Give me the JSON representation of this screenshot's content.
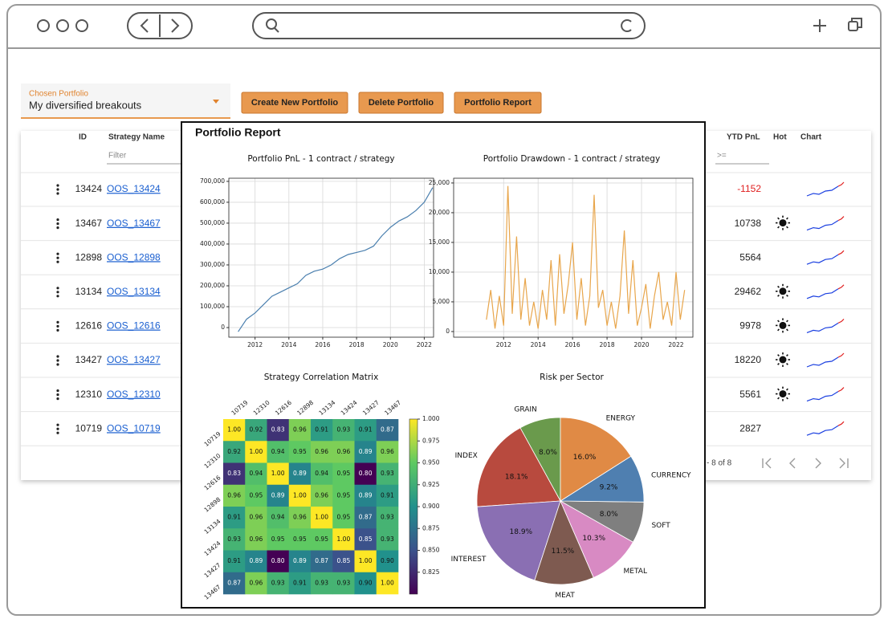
{
  "selector": {
    "label": "Chosen Portfolio",
    "value": "My diversified breakouts"
  },
  "buttons": [
    "Create New Portfolio",
    "Delete Portfolio",
    "Portfolio Report"
  ],
  "table": {
    "columns": [
      "ID",
      "Strategy Name",
      "YTD PnL",
      "Hot",
      "Chart"
    ],
    "filter_placeholder": "Filter",
    "filter_operator": ">=",
    "rows": [
      {
        "id": 13424,
        "name": "OOS_13424",
        "ytd_pnl": -1152,
        "hot": false
      },
      {
        "id": 13467,
        "name": "OOS_13467",
        "ytd_pnl": 10738,
        "hot": true
      },
      {
        "id": 12898,
        "name": "OOS_12898",
        "ytd_pnl": 5564,
        "hot": false
      },
      {
        "id": 13134,
        "name": "OOS_13134",
        "ytd_pnl": 29462,
        "hot": true
      },
      {
        "id": 12616,
        "name": "OOS_12616",
        "ytd_pnl": 9978,
        "hot": true
      },
      {
        "id": 13427,
        "name": "OOS_13427",
        "ytd_pnl": 18220,
        "hot": true
      },
      {
        "id": 12310,
        "name": "OOS_12310",
        "ytd_pnl": 5561,
        "hot": true
      },
      {
        "id": 10719,
        "name": "OOS_10719",
        "ytd_pnl": 2827,
        "hot": false
      }
    ],
    "pagination": "- 8 of 8"
  },
  "report_title": "Portfolio Report",
  "chart_data": [
    {
      "type": "line",
      "title": "Portfolio PnL - 1 contract / strategy",
      "color": "#4a7fae",
      "grid": true,
      "x": [
        2011,
        2011.5,
        2012,
        2012.5,
        2013,
        2013.5,
        2014,
        2014.5,
        2015,
        2015.5,
        2016,
        2016.5,
        2017,
        2017.5,
        2018,
        2018.5,
        2019,
        2019.5,
        2020,
        2020.5,
        2021,
        2021.5,
        2022,
        2022.5
      ],
      "values": [
        -20000,
        40000,
        70000,
        110000,
        150000,
        170000,
        190000,
        210000,
        250000,
        270000,
        280000,
        300000,
        330000,
        350000,
        360000,
        370000,
        390000,
        440000,
        480000,
        510000,
        530000,
        560000,
        600000,
        670000
      ],
      "xlim": [
        2010.45,
        2022.55
      ],
      "xticks": [
        2012,
        2014,
        2016,
        2018,
        2020,
        2022
      ],
      "ylim": [
        -46000,
        715000
      ],
      "yticks": [
        0,
        {
          "value": 100000,
          "label": "100,000"
        },
        {
          "value": 200000,
          "label": "200,000"
        },
        {
          "value": 300000,
          "label": "300,000"
        },
        {
          "value": 400000,
          "label": "400,000"
        },
        {
          "value": 500000,
          "label": "500,000"
        },
        {
          "value": 600000,
          "label": "600,000"
        },
        {
          "value": 700000,
          "label": "700,000"
        }
      ]
    },
    {
      "type": "line",
      "title": "Portfolio Drawdown - 1 contract / strategy",
      "color": "#e8a64c",
      "grid": true,
      "x": [
        2011,
        2011.25,
        2011.5,
        2011.75,
        2012,
        2012.25,
        2012.5,
        2012.75,
        2013,
        2013.25,
        2013.5,
        2013.75,
        2014,
        2014.25,
        2014.5,
        2014.75,
        2015,
        2015.25,
        2015.5,
        2015.75,
        2016,
        2016.25,
        2016.5,
        2016.75,
        2017,
        2017.25,
        2017.5,
        2017.75,
        2018,
        2018.25,
        2018.5,
        2018.75,
        2019,
        2019.25,
        2019.5,
        2019.75,
        2020,
        2020.25,
        2020.5,
        2020.75,
        2021,
        2021.25,
        2021.5,
        2021.75,
        2022,
        2022.25,
        2022.5
      ],
      "values": [
        2000,
        7000,
        500,
        6000,
        1000,
        24500,
        3000,
        16000,
        2000,
        9000,
        1000,
        5000,
        500,
        7000,
        2000,
        12000,
        1000,
        13000,
        3000,
        8000,
        15000,
        2000,
        9000,
        1000,
        6000,
        23000,
        4000,
        7000,
        1000,
        5000,
        500,
        6000,
        17000,
        3000,
        12000,
        1000,
        4000,
        8000,
        500,
        6000,
        10000,
        2000,
        5000,
        1000,
        10000,
        2000,
        7000
      ],
      "xlim": [
        2009.1,
        2022.98
      ],
      "xticks": [
        2012,
        2014,
        2016,
        2018,
        2020,
        2022
      ],
      "ylim": [
        -950,
        25800
      ],
      "yticks": [
        0,
        {
          "value": 5000,
          "label": "5,000"
        },
        {
          "value": 10000,
          "label": "10,000"
        },
        {
          "value": 15000,
          "label": "15,000"
        },
        {
          "value": 20000,
          "label": "20,000"
        },
        {
          "value": 25000,
          "label": "25,000"
        }
      ]
    },
    {
      "type": "heatmap",
      "title": "Strategy Correlation Matrix",
      "categories": [
        "10719",
        "12310",
        "12616",
        "12898",
        "13134",
        "13424",
        "13427",
        "13467"
      ],
      "values": [
        [
          1.0,
          0.92,
          0.83,
          0.96,
          0.91,
          0.93,
          0.91,
          0.87
        ],
        [
          0.92,
          1.0,
          0.94,
          0.95,
          0.96,
          0.96,
          0.89,
          0.96
        ],
        [
          0.83,
          0.94,
          1.0,
          0.89,
          0.94,
          0.95,
          0.8,
          0.93
        ],
        [
          0.96,
          0.95,
          0.89,
          1.0,
          0.96,
          0.95,
          0.89,
          0.91
        ],
        [
          0.91,
          0.96,
          0.94,
          0.96,
          1.0,
          0.95,
          0.87,
          0.93
        ],
        [
          0.93,
          0.96,
          0.95,
          0.95,
          0.95,
          1.0,
          0.85,
          0.93
        ],
        [
          0.91,
          0.89,
          0.8,
          0.89,
          0.87,
          0.85,
          1.0,
          0.9
        ],
        [
          0.87,
          0.96,
          0.93,
          0.91,
          0.93,
          0.93,
          0.9,
          1.0
        ]
      ],
      "value_labels": [
        [
          "1.00",
          "0.92",
          "0.83",
          "0.96",
          "0.91",
          "0.93",
          "0.91",
          "0.87"
        ],
        [
          "0.92",
          "1.00",
          "0.94",
          "0.95",
          "0.96",
          "0.96",
          "0.89",
          "0.96"
        ],
        [
          "0.83",
          "0.94",
          "1.00",
          "0.89",
          "0.94",
          "0.95",
          "0.80",
          "0.93"
        ],
        [
          "0.96",
          "0.95",
          "0.89",
          "1.00",
          "0.96",
          "0.95",
          "0.89",
          "0.91"
        ],
        [
          "0.91",
          "0.96",
          "0.94",
          "0.96",
          "1.00",
          "0.95",
          "0.87",
          "0.93"
        ],
        [
          "0.93",
          "0.96",
          "0.95",
          "0.95",
          "0.95",
          "1.00",
          "0.85",
          "0.93"
        ],
        [
          "0.91",
          "0.89",
          "0.80",
          "0.89",
          "0.87",
          "0.85",
          "1.00",
          "0.90"
        ],
        [
          "0.87",
          "0.96",
          "0.93",
          "0.91",
          "0.93",
          "0.93",
          "0.90",
          "1.00"
        ]
      ],
      "clim": [
        0.8,
        1.0
      ],
      "colormap": "viridis",
      "cticks": [
        0.825,
        {
          "value": 0.85,
          "label": "0.850"
        },
        0.875,
        {
          "value": 0.9,
          "label": "0.900"
        },
        0.925,
        {
          "value": 0.95,
          "label": "0.950"
        },
        0.975,
        {
          "value": 1,
          "label": "1.000"
        }
      ]
    },
    {
      "type": "pie",
      "title": "Risk per Sector",
      "categories": [
        "GRAIN",
        "INDEX",
        "INTEREST",
        "MEAT",
        "METAL",
        "SOFT",
        "CURRENCY",
        "ENERGY"
      ],
      "values": [
        8.0,
        18.1,
        18.9,
        11.5,
        10.3,
        8.0,
        9.2,
        16.0
      ],
      "value_labels": [
        "8.0%",
        "18.1%",
        "18.9%",
        "11.5%",
        "10.3%",
        "8.0%",
        "9.2%",
        "16.0%"
      ],
      "colors": [
        "#6a9a4c",
        "#b84a3e",
        "#8a6fb3",
        "#7e5a50",
        "#d88ac3",
        "#7f7f7f",
        "#4f7fb0",
        "#e08a45"
      ],
      "start_angle": 90,
      "direction": "counterclockwise"
    }
  ]
}
